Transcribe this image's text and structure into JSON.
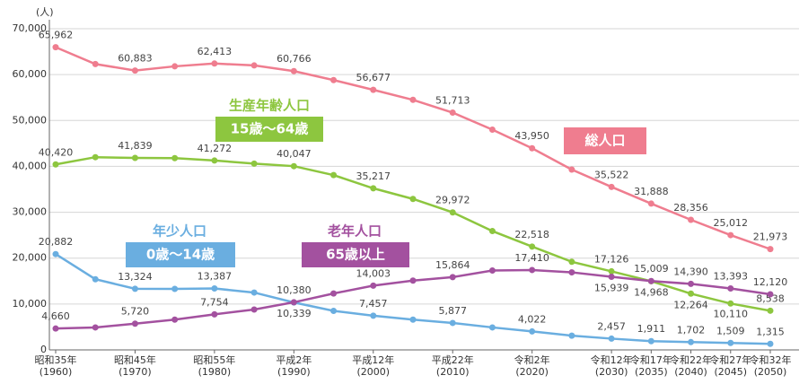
{
  "chart_data": {
    "type": "line",
    "y_unit": "(人)",
    "categories": [
      "昭和35年\n(1960)",
      null,
      "昭和45年\n(1970)",
      null,
      "昭和55年\n(1980)",
      null,
      "平成2年\n(1990)",
      null,
      "平成12年\n(2000)",
      null,
      "平成22年\n(2010)",
      null,
      "令和2年\n(2020)",
      null,
      "令和12年\n(2030)",
      "令和17年\n(2035)",
      "令和22年\n(2040)",
      "令和27年\n(2045)",
      "令和32年\n(2050)"
    ],
    "ylim": [
      0,
      70000
    ],
    "yticks": [
      0,
      {
        "value": 10000,
        "label": "10,000"
      },
      {
        "value": 20000,
        "label": "20,000"
      },
      {
        "value": 30000,
        "label": "30,000"
      },
      {
        "value": 40000,
        "label": "40,000"
      },
      {
        "value": 50000,
        "label": "50,000"
      },
      {
        "value": 60000,
        "label": "60,000"
      },
      {
        "value": 70000,
        "label": "70,000"
      }
    ],
    "grid": true,
    "series": [
      {
        "name": "総人口",
        "color": "#ef7d8f",
        "values": [
          65962,
          62300,
          60883,
          61800,
          62413,
          62000,
          60766,
          58800,
          56677,
          54500,
          51713,
          48000,
          43950,
          39300,
          35522,
          31888,
          28356,
          25012,
          21973
        ],
        "value_labels": [
          "65,962",
          null,
          "60,883",
          null,
          "62,413",
          null,
          "60,766",
          null,
          "56,677",
          null,
          "51,713",
          null,
          "43,950",
          null,
          "35,522",
          "31,888",
          "28,356",
          "25,012",
          "21,973"
        ]
      },
      {
        "name": "生産年齢人口",
        "age_range": "15歳〜64歳",
        "color": "#8dc63f",
        "values": [
          40420,
          42000,
          41839,
          41800,
          41272,
          40600,
          40047,
          38100,
          35217,
          32900,
          29972,
          25900,
          22518,
          19200,
          17126,
          14968,
          12264,
          10110,
          8538
        ],
        "value_labels": [
          "40,420",
          null,
          "41,839",
          null,
          "41,272",
          null,
          "40,047",
          null,
          "35,217",
          null,
          "29,972",
          null,
          "22,518",
          null,
          "17,126",
          "14,968",
          "12,264",
          "10,110",
          "8,538"
        ]
      },
      {
        "name": "年少人口",
        "age_range": "0歳〜14歳",
        "color": "#6aaee0",
        "values": [
          20882,
          15400,
          13324,
          13300,
          13387,
          12500,
          10339,
          8500,
          7457,
          6600,
          5877,
          4900,
          4022,
          3100,
          2457,
          1911,
          1702,
          1509,
          1315
        ],
        "value_labels": [
          "20,882",
          null,
          "13,324",
          null,
          "13,387",
          null,
          "10,339",
          null,
          "7,457",
          null,
          "5,877",
          null,
          "4,022",
          null,
          "2,457",
          "1,911",
          "1,702",
          "1,509",
          "1,315"
        ]
      },
      {
        "name": "老年人口",
        "age_range": "65歳以上",
        "color": "#a3519f",
        "values": [
          4660,
          4900,
          5720,
          6600,
          7754,
          8800,
          10380,
          12300,
          14003,
          15100,
          15864,
          17300,
          17410,
          16900,
          15939,
          15009,
          14390,
          13393,
          12120
        ],
        "value_labels": [
          "4,660",
          null,
          "5,720",
          null,
          "7,754",
          null,
          "10,380",
          null,
          "14,003",
          null,
          "15,864",
          null,
          "17,410",
          null,
          "15,939",
          "15,009",
          "14,390",
          "13,393",
          "12,120"
        ]
      }
    ]
  }
}
